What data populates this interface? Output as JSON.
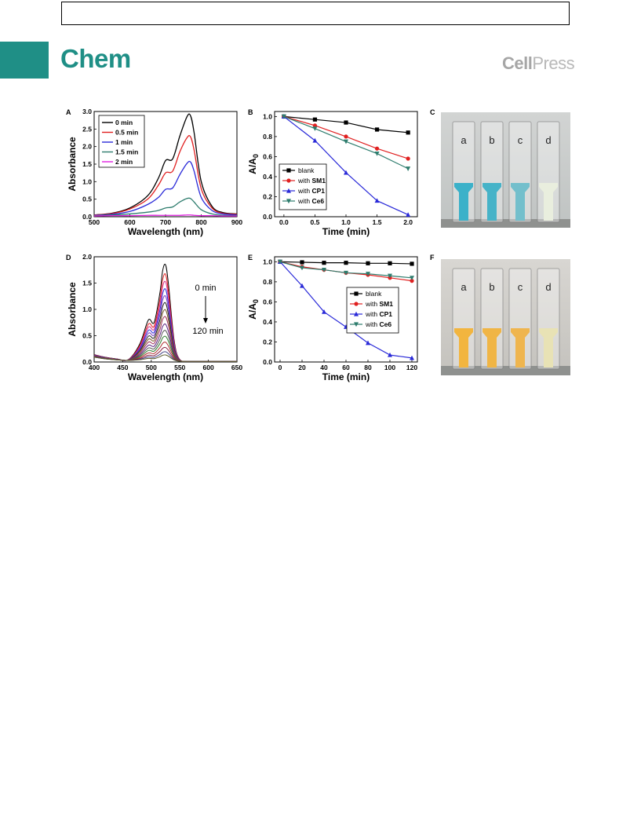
{
  "header": {
    "brand": "Chem",
    "publisher_bold": "Cell",
    "publisher_light": "Press"
  },
  "panels": {
    "A": "A",
    "B": "B",
    "C": "C",
    "D": "D",
    "E": "E",
    "F": "F"
  },
  "photos": {
    "C": {
      "vial_labels": [
        "a",
        "b",
        "c",
        "d"
      ],
      "liquid_colors": [
        "#3bb1c9",
        "#46b3c8",
        "#73bfcc",
        "#e9eede"
      ]
    },
    "F": {
      "vial_labels": [
        "a",
        "b",
        "c",
        "d"
      ],
      "liquid_colors": [
        "#f2b53f",
        "#f0b545",
        "#efb54e",
        "#e8e2b5"
      ]
    }
  },
  "chart_data": [
    {
      "id": "A",
      "type": "line",
      "xlabel": "Wavelength (nm)",
      "ylabel": "Absorbance",
      "xlim": [
        500,
        900
      ],
      "ylim": [
        0,
        3.0
      ],
      "xticks": [
        500,
        600,
        700,
        800,
        900
      ],
      "yticks": [
        "0.0",
        "0.5",
        "1.0",
        "1.5",
        "2.0",
        "2.5",
        "3.0"
      ],
      "legend_position": "top-left",
      "x": [
        500,
        550,
        600,
        650,
        680,
        700,
        720,
        740,
        760,
        770,
        780,
        800,
        830,
        860,
        900
      ],
      "series": [
        {
          "name": "0 min",
          "color": "#000000",
          "values": [
            0.05,
            0.1,
            0.25,
            0.6,
            1.1,
            1.6,
            1.65,
            2.3,
            2.85,
            2.88,
            2.4,
            1.0,
            0.3,
            0.12,
            0.08
          ]
        },
        {
          "name": "0.5 min",
          "color": "#e02020",
          "values": [
            0.05,
            0.09,
            0.22,
            0.5,
            0.9,
            1.25,
            1.3,
            1.85,
            2.25,
            2.28,
            1.9,
            0.8,
            0.25,
            0.1,
            0.07
          ]
        },
        {
          "name": "1 min",
          "color": "#2a2ad8",
          "values": [
            0.04,
            0.07,
            0.15,
            0.35,
            0.55,
            0.78,
            0.82,
            1.2,
            1.52,
            1.56,
            1.3,
            0.55,
            0.18,
            0.08,
            0.05
          ]
        },
        {
          "name": "1.5 min",
          "color": "#2f7d6e",
          "values": [
            0.03,
            0.05,
            0.08,
            0.13,
            0.18,
            0.25,
            0.28,
            0.42,
            0.52,
            0.52,
            0.42,
            0.2,
            0.08,
            0.04,
            0.03
          ]
        },
        {
          "name": "2 min",
          "color": "#e020e0",
          "values": [
            0.02,
            0.03,
            0.03,
            0.04,
            0.04,
            0.04,
            0.04,
            0.04,
            0.05,
            0.05,
            0.04,
            0.03,
            0.03,
            0.02,
            0.02
          ]
        }
      ]
    },
    {
      "id": "B",
      "type": "line",
      "xlabel": "Time (min)",
      "ylabel": "A/A",
      "ylabel_sub": "0",
      "xlim": [
        -0.15,
        2.15
      ],
      "ylim": [
        0,
        1.05
      ],
      "xticks": [
        "0.0",
        "0.5",
        "1.0",
        "1.5",
        "2.0"
      ],
      "yticks": [
        "0.0",
        "0.2",
        "0.4",
        "0.6",
        "0.8",
        "1.0"
      ],
      "legend_position": "bottom-left",
      "x": [
        0,
        0.5,
        1.0,
        1.5,
        2.0
      ],
      "series": [
        {
          "name": "blank",
          "color": "#000000",
          "marker": "square",
          "values": [
            1.0,
            0.97,
            0.94,
            0.87,
            0.84
          ]
        },
        {
          "name": "with SM1",
          "color": "#e02020",
          "marker": "circle",
          "values": [
            1.0,
            0.91,
            0.8,
            0.68,
            0.58
          ]
        },
        {
          "name": "with CP1",
          "color": "#2a2ad8",
          "marker": "triangle-up",
          "values": [
            1.0,
            0.76,
            0.44,
            0.16,
            0.02
          ]
        },
        {
          "name": "with Ce6",
          "color": "#2f7d6e",
          "marker": "triangle-down",
          "values": [
            1.0,
            0.88,
            0.75,
            0.63,
            0.48
          ]
        }
      ]
    },
    {
      "id": "D",
      "type": "line",
      "xlabel": "Wavelength (nm)",
      "ylabel": "Absorbance",
      "xlim": [
        400,
        650
      ],
      "ylim": [
        0,
        2.0
      ],
      "xticks": [
        400,
        450,
        500,
        550,
        600,
        650
      ],
      "yticks": [
        "0.0",
        "0.5",
        "1.0",
        "1.5",
        "2.0"
      ],
      "annotation_start": "0 min",
      "annotation_end": "120 min",
      "x": [
        400,
        420,
        440,
        460,
        480,
        495,
        505,
        515,
        520,
        525,
        530,
        540,
        550,
        570,
        600,
        650
      ],
      "peaks": [
        1.82,
        1.64,
        1.5,
        1.36,
        1.23,
        1.1,
        0.97,
        0.84,
        0.7,
        0.58,
        0.47,
        0.36,
        0.26,
        0.18,
        0.12
      ],
      "colors": [
        "#000000",
        "#e02020",
        "#d9308a",
        "#2a2ad8",
        "#7a3fbf",
        "#222222",
        "#7a5a2a",
        "#a0305a",
        "#5b1f80",
        "#555555",
        "#2f7d2f",
        "#b03030",
        "#8a2040",
        "#404080",
        "#5a5a2a"
      ]
    },
    {
      "id": "E",
      "type": "line",
      "xlabel": "Time (min)",
      "ylabel": "A/A",
      "ylabel_sub": "0",
      "xlim": [
        -5,
        125
      ],
      "ylim": [
        0,
        1.05
      ],
      "xticks": [
        0,
        20,
        40,
        60,
        80,
        100,
        120
      ],
      "yticks": [
        "0.0",
        "0.2",
        "0.4",
        "0.6",
        "0.8",
        "1.0"
      ],
      "legend_position": "right",
      "x": [
        0,
        20,
        40,
        60,
        80,
        100,
        120
      ],
      "series": [
        {
          "name": "blank",
          "color": "#000000",
          "marker": "square",
          "values": [
            1.0,
            0.995,
            0.99,
            0.99,
            0.985,
            0.985,
            0.98
          ]
        },
        {
          "name": "with SM1",
          "color": "#e02020",
          "marker": "circle",
          "values": [
            1.0,
            0.95,
            0.92,
            0.89,
            0.87,
            0.84,
            0.81
          ]
        },
        {
          "name": "with CP1",
          "color": "#2a2ad8",
          "marker": "triangle-up",
          "values": [
            1.0,
            0.76,
            0.5,
            0.35,
            0.19,
            0.07,
            0.04
          ]
        },
        {
          "name": "with Ce6",
          "color": "#2f7d6e",
          "marker": "triangle-down",
          "values": [
            1.0,
            0.94,
            0.92,
            0.89,
            0.88,
            0.86,
            0.84
          ]
        }
      ]
    }
  ]
}
